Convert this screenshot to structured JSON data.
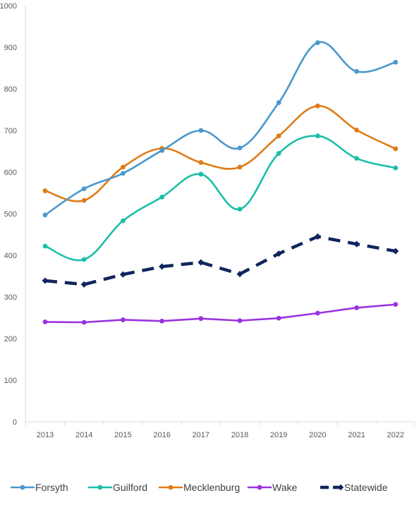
{
  "chart_data": {
    "type": "line",
    "title": "",
    "xlabel": "",
    "ylabel": "",
    "x": [
      "2013",
      "2014",
      "2015",
      "2016",
      "2017",
      "2018",
      "2019",
      "2020",
      "2021",
      "2022"
    ],
    "ylim": [
      0,
      1000
    ],
    "yticks": [
      "0",
      "100",
      "200",
      "300",
      "400",
      "500",
      "600",
      "700",
      "800",
      "900",
      "1000"
    ],
    "grid": false,
    "legend_position": "bottom",
    "series": [
      {
        "name": "Forsyth",
        "color": "#4a98cc",
        "style": "solid-smooth",
        "values": [
          497,
          560,
          597,
          652,
          700,
          658,
          767,
          911,
          842,
          864
        ]
      },
      {
        "name": "Guilford",
        "color": "#1abfa8",
        "style": "solid-smooth",
        "values": [
          422,
          390,
          483,
          540,
          595,
          511,
          645,
          687,
          633,
          610
        ]
      },
      {
        "name": "Mecklenburg",
        "color": "#e07b17",
        "style": "solid-smooth",
        "values": [
          555,
          532,
          612,
          657,
          623,
          612,
          687,
          759,
          701,
          656
        ]
      },
      {
        "name": "Wake",
        "color": "#9a32e0",
        "style": "solid",
        "values": [
          240,
          239,
          245,
          242,
          248,
          243,
          249,
          261,
          274,
          282
        ]
      },
      {
        "name": "Statewide",
        "color": "#10255e",
        "style": "dashed",
        "values": [
          339,
          330,
          354,
          373,
          383,
          355,
          404,
          445,
          427,
          410
        ]
      }
    ]
  }
}
